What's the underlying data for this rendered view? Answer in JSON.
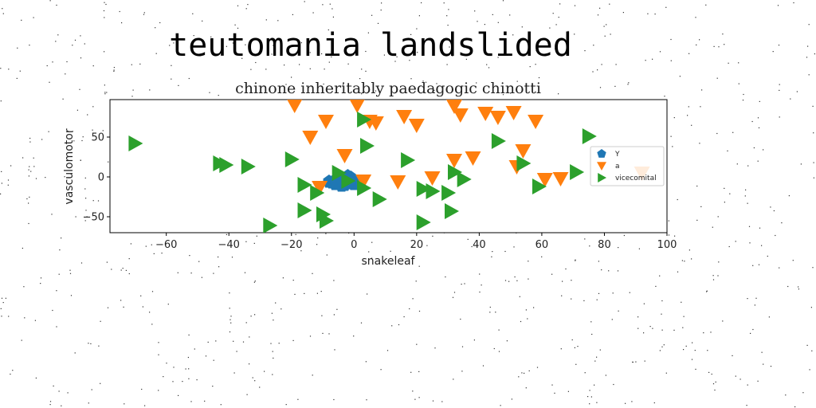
{
  "page_title": "teutomania landslided",
  "chart_data": {
    "type": "scatter",
    "title": "chinone inheritably paedagogic chinotti",
    "xlabel": "snakeleaf",
    "ylabel": "vasculomotor",
    "xlim": [
      -78,
      100
    ],
    "ylim": [
      -70,
      97
    ],
    "xticks": [
      -60,
      -40,
      -20,
      0,
      20,
      40,
      60,
      80,
      100
    ],
    "yticks": [
      -50,
      0,
      50
    ],
    "grid": false,
    "legend_position": "right",
    "series": [
      {
        "name": "Y",
        "marker": "pentagon",
        "color": "#1f77b4",
        "points": [
          [
            -8,
            -5
          ],
          [
            -6,
            -3
          ],
          [
            -7,
            -8
          ],
          [
            -5,
            -1
          ],
          [
            -4,
            -10
          ],
          [
            -3,
            -6
          ],
          [
            -2,
            -2
          ],
          [
            -1,
            0
          ],
          [
            0,
            -4
          ],
          [
            -4,
            -12
          ],
          [
            -2,
            2
          ],
          [
            -6,
            -10
          ],
          [
            -1,
            -9
          ],
          [
            -3,
            -2
          ],
          [
            -8,
            -7
          ],
          [
            -5,
            -9
          ],
          [
            -2,
            -7
          ],
          [
            1,
            -5
          ],
          [
            0,
            -10
          ],
          [
            -3,
            -11
          ],
          [
            -6,
            -6
          ],
          [
            -4,
            -4
          ],
          [
            -1,
            -6
          ]
        ]
      },
      {
        "name": "a",
        "marker": "triangle-down",
        "color": "#ff7f0e",
        "points": [
          [
            -19,
            90
          ],
          [
            1,
            90
          ],
          [
            -9,
            70
          ],
          [
            5,
            70
          ],
          [
            7,
            68
          ],
          [
            16,
            76
          ],
          [
            20,
            65
          ],
          [
            32,
            89
          ],
          [
            34,
            78
          ],
          [
            42,
            80
          ],
          [
            46,
            75
          ],
          [
            51,
            81
          ],
          [
            58,
            70
          ],
          [
            -14,
            50
          ],
          [
            -3,
            27
          ],
          [
            54,
            33
          ],
          [
            38,
            24
          ],
          [
            32,
            21
          ],
          [
            52,
            13
          ],
          [
            14,
            -6
          ],
          [
            25,
            -1
          ],
          [
            -11,
            -13
          ],
          [
            3,
            -5
          ],
          [
            61,
            -3
          ],
          [
            66,
            -2
          ],
          [
            92,
            5
          ]
        ]
      },
      {
        "name": "vicecomital",
        "marker": "triangle-right",
        "color": "#2ca02c",
        "points": [
          [
            -70,
            42
          ],
          [
            -43,
            17
          ],
          [
            -41,
            15
          ],
          [
            -34,
            13
          ],
          [
            -20,
            22
          ],
          [
            3,
            72
          ],
          [
            4,
            39
          ],
          [
            17,
            21
          ],
          [
            46,
            45
          ],
          [
            75,
            51
          ],
          [
            54,
            17
          ],
          [
            71,
            6
          ],
          [
            -5,
            5
          ],
          [
            32,
            6
          ],
          [
            35,
            -3
          ],
          [
            -2,
            -5
          ],
          [
            -16,
            -10
          ],
          [
            -12,
            -20
          ],
          [
            3,
            -14
          ],
          [
            8,
            -28
          ],
          [
            -16,
            -42
          ],
          [
            -10,
            -47
          ],
          [
            -9,
            -55
          ],
          [
            -27,
            -61
          ],
          [
            22,
            -15
          ],
          [
            25,
            -18
          ],
          [
            30,
            -20
          ],
          [
            59,
            -12
          ],
          [
            31,
            -43
          ],
          [
            22,
            -57
          ]
        ]
      }
    ]
  }
}
